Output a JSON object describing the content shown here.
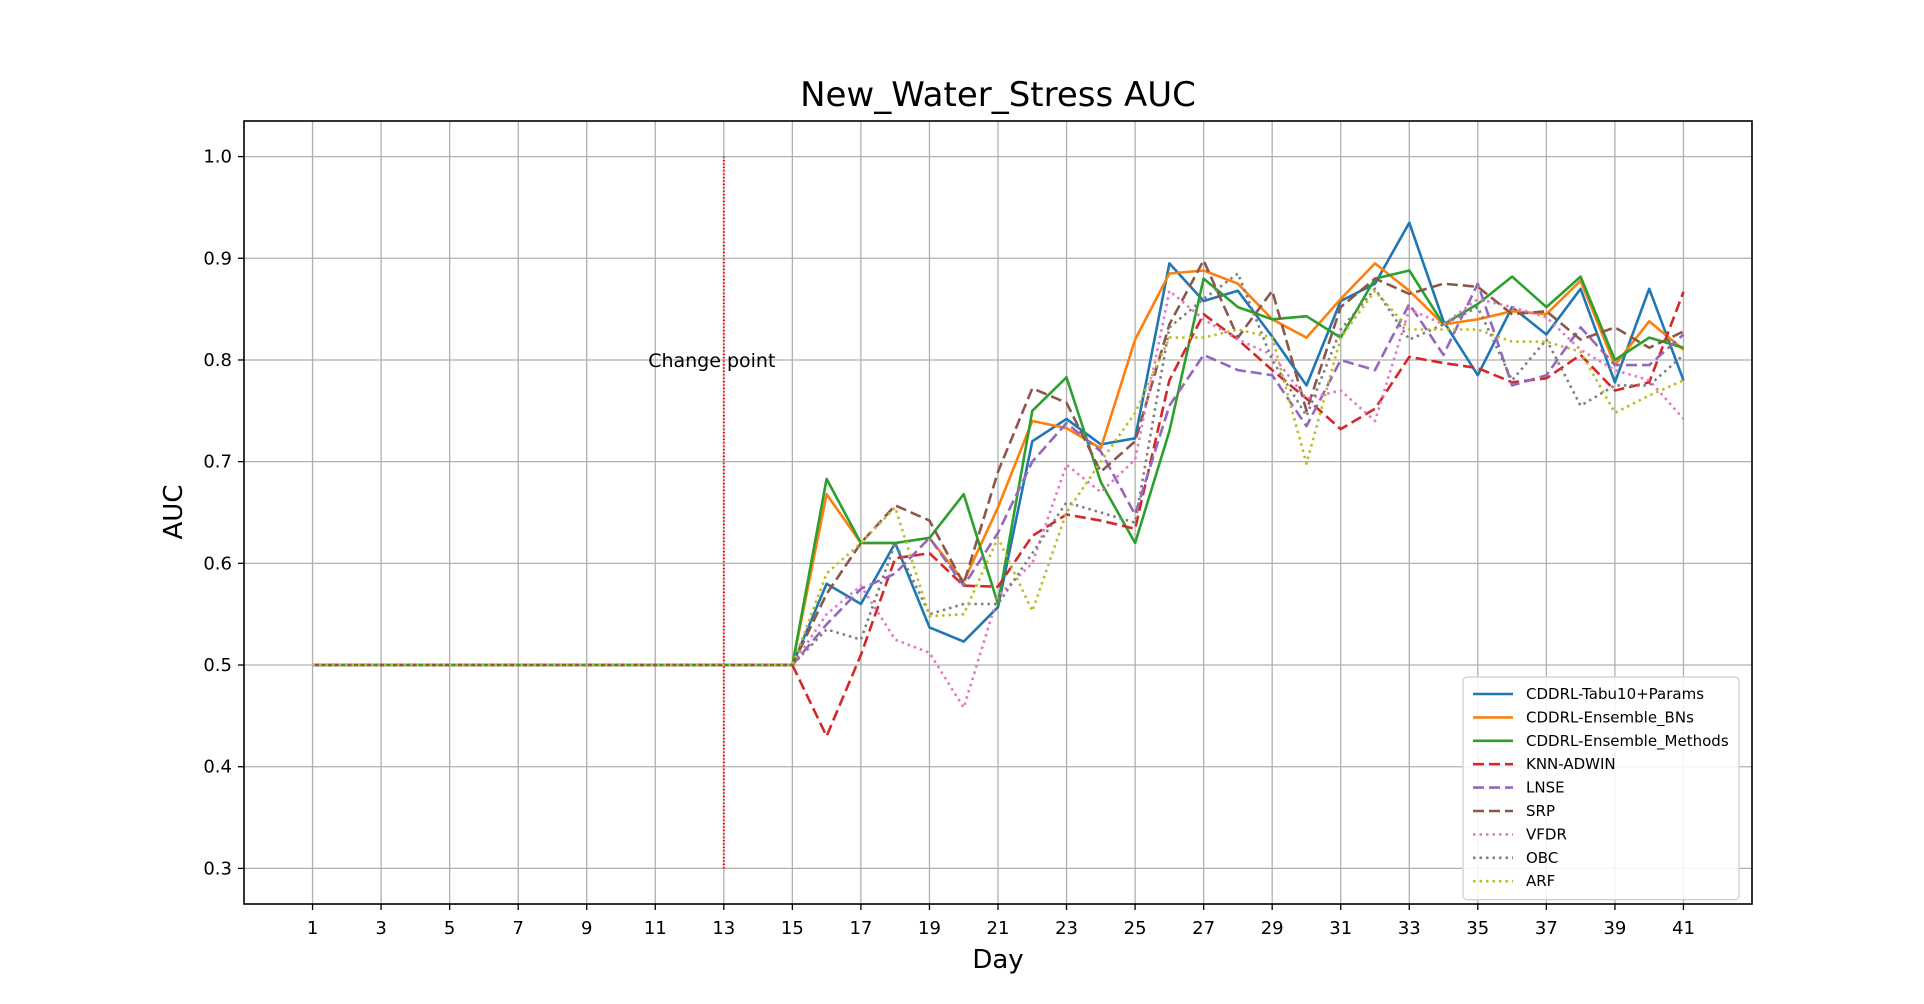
{
  "chart_data": {
    "type": "line",
    "title": "New_Water_Stress AUC",
    "xlabel": "Day",
    "ylabel": "AUC",
    "xlim": [
      -1,
      43
    ],
    "ylim": [
      0.265,
      1.035
    ],
    "xticks": [
      1,
      3,
      5,
      7,
      9,
      11,
      13,
      15,
      17,
      19,
      21,
      23,
      25,
      27,
      29,
      31,
      33,
      35,
      37,
      39,
      41
    ],
    "yticks": [
      0.3,
      0.4,
      0.5,
      0.6,
      0.7,
      0.8,
      0.9,
      1.0
    ],
    "ytick_labels": [
      "0.3",
      "0.4",
      "0.5",
      "0.6",
      "0.7",
      "0.8",
      "0.9",
      "1.0"
    ],
    "grid": true,
    "legend_position": "lower right",
    "annotation": {
      "text": "Change point",
      "x": 13,
      "y": 0.8,
      "line_x": 13,
      "line_y": [
        0.3,
        1.0
      ],
      "color": "#ff0000"
    },
    "x": [
      1,
      2,
      3,
      4,
      5,
      6,
      7,
      8,
      9,
      10,
      11,
      12,
      13,
      14,
      15,
      16,
      17,
      18,
      19,
      20,
      21,
      22,
      23,
      24,
      25,
      26,
      27,
      28,
      29,
      30,
      31,
      32,
      33,
      34,
      35,
      36,
      37,
      38,
      39,
      40,
      41
    ],
    "series": [
      {
        "name": "CDDRL-Tabu10+Params",
        "color": "#1f77b4",
        "style": "solid",
        "values": [
          0.5,
          0.5,
          0.5,
          0.5,
          0.5,
          0.5,
          0.5,
          0.5,
          0.5,
          0.5,
          0.5,
          0.5,
          0.5,
          0.5,
          0.5,
          0.58,
          0.56,
          0.62,
          0.537,
          0.523,
          0.557,
          0.72,
          0.742,
          0.717,
          0.723,
          0.895,
          0.858,
          0.868,
          0.823,
          0.775,
          0.858,
          0.875,
          0.935,
          0.838,
          0.785,
          0.852,
          0.825,
          0.87,
          0.778,
          0.87,
          0.78
        ]
      },
      {
        "name": "CDDRL-Ensemble_BNs",
        "color": "#ff7f0e",
        "style": "solid",
        "values": [
          0.5,
          0.5,
          0.5,
          0.5,
          0.5,
          0.5,
          0.5,
          0.5,
          0.5,
          0.5,
          0.5,
          0.5,
          0.5,
          0.5,
          0.5,
          0.668,
          0.62,
          0.62,
          0.625,
          0.582,
          0.655,
          0.74,
          0.733,
          0.713,
          0.82,
          0.885,
          0.888,
          0.875,
          0.84,
          0.822,
          0.86,
          0.895,
          0.868,
          0.835,
          0.84,
          0.848,
          0.845,
          0.878,
          0.795,
          0.838,
          0.81
        ]
      },
      {
        "name": "CDDRL-Ensemble_Methods",
        "color": "#2ca02c",
        "style": "solid",
        "values": [
          0.5,
          0.5,
          0.5,
          0.5,
          0.5,
          0.5,
          0.5,
          0.5,
          0.5,
          0.5,
          0.5,
          0.5,
          0.5,
          0.5,
          0.5,
          0.683,
          0.62,
          0.62,
          0.625,
          0.668,
          0.56,
          0.75,
          0.783,
          0.68,
          0.62,
          0.73,
          0.88,
          0.852,
          0.84,
          0.843,
          0.822,
          0.88,
          0.888,
          0.835,
          0.855,
          0.882,
          0.852,
          0.882,
          0.8,
          0.822,
          0.812
        ]
      },
      {
        "name": "KNN-ADWIN",
        "color": "#d62728",
        "style": "dashed",
        "values": [
          0.5,
          0.5,
          0.5,
          0.5,
          0.5,
          0.5,
          0.5,
          0.5,
          0.5,
          0.5,
          0.5,
          0.5,
          0.5,
          0.5,
          0.5,
          0.43,
          0.51,
          0.605,
          0.61,
          0.578,
          0.577,
          0.627,
          0.648,
          0.642,
          0.634,
          0.78,
          0.845,
          0.82,
          0.79,
          0.762,
          0.732,
          0.752,
          0.803,
          0.797,
          0.792,
          0.778,
          0.782,
          0.805,
          0.77,
          0.778,
          0.867
        ]
      },
      {
        "name": "LNSE",
        "color": "#9467bd",
        "style": "dashed",
        "values": [
          0.5,
          0.5,
          0.5,
          0.5,
          0.5,
          0.5,
          0.5,
          0.5,
          0.5,
          0.5,
          0.5,
          0.5,
          0.5,
          0.5,
          0.5,
          0.54,
          0.575,
          0.59,
          0.625,
          0.578,
          0.63,
          0.7,
          0.738,
          0.71,
          0.648,
          0.755,
          0.805,
          0.79,
          0.785,
          0.735,
          0.8,
          0.79,
          0.855,
          0.805,
          0.875,
          0.775,
          0.785,
          0.832,
          0.795,
          0.795,
          0.825
        ]
      },
      {
        "name": "SRP",
        "color": "#8c564b",
        "style": "dashed",
        "values": [
          0.5,
          0.5,
          0.5,
          0.5,
          0.5,
          0.5,
          0.5,
          0.5,
          0.5,
          0.5,
          0.5,
          0.5,
          0.5,
          0.5,
          0.5,
          0.57,
          0.62,
          0.657,
          0.642,
          0.58,
          0.69,
          0.772,
          0.758,
          0.69,
          0.72,
          0.835,
          0.898,
          0.822,
          0.868,
          0.75,
          0.852,
          0.88,
          0.865,
          0.875,
          0.872,
          0.845,
          0.848,
          0.82,
          0.832,
          0.812,
          0.828
        ]
      },
      {
        "name": "VFDR",
        "color": "#e377c2",
        "style": "dotted",
        "values": [
          0.5,
          0.5,
          0.5,
          0.5,
          0.5,
          0.5,
          0.5,
          0.5,
          0.5,
          0.5,
          0.5,
          0.5,
          0.5,
          0.5,
          0.5,
          0.55,
          0.578,
          0.525,
          0.512,
          0.458,
          0.568,
          0.6,
          0.697,
          0.67,
          0.702,
          0.868,
          0.84,
          0.82,
          0.805,
          0.762,
          0.77,
          0.74,
          0.85,
          0.835,
          0.86,
          0.852,
          0.842,
          0.81,
          0.79,
          0.78,
          0.742
        ]
      },
      {
        "name": "OBC",
        "color": "#7f7f7f",
        "style": "dotted",
        "values": [
          0.5,
          0.5,
          0.5,
          0.5,
          0.5,
          0.5,
          0.5,
          0.5,
          0.5,
          0.5,
          0.5,
          0.5,
          0.5,
          0.5,
          0.5,
          0.535,
          0.525,
          0.62,
          0.55,
          0.56,
          0.56,
          0.61,
          0.66,
          0.65,
          0.64,
          0.832,
          0.86,
          0.885,
          0.8,
          0.745,
          0.83,
          0.87,
          0.82,
          0.835,
          0.852,
          0.78,
          0.82,
          0.755,
          0.775,
          0.775,
          0.805
        ]
      },
      {
        "name": "ARF",
        "color": "#bcbd22",
        "style": "dotted",
        "values": [
          0.5,
          0.5,
          0.5,
          0.5,
          0.5,
          0.5,
          0.5,
          0.5,
          0.5,
          0.5,
          0.5,
          0.5,
          0.5,
          0.5,
          0.5,
          0.59,
          0.62,
          0.655,
          0.548,
          0.55,
          0.625,
          0.553,
          0.65,
          0.7,
          0.748,
          0.822,
          0.822,
          0.83,
          0.822,
          0.698,
          0.822,
          0.868,
          0.83,
          0.83,
          0.83,
          0.818,
          0.818,
          0.808,
          0.748,
          0.765,
          0.78
        ]
      }
    ]
  }
}
